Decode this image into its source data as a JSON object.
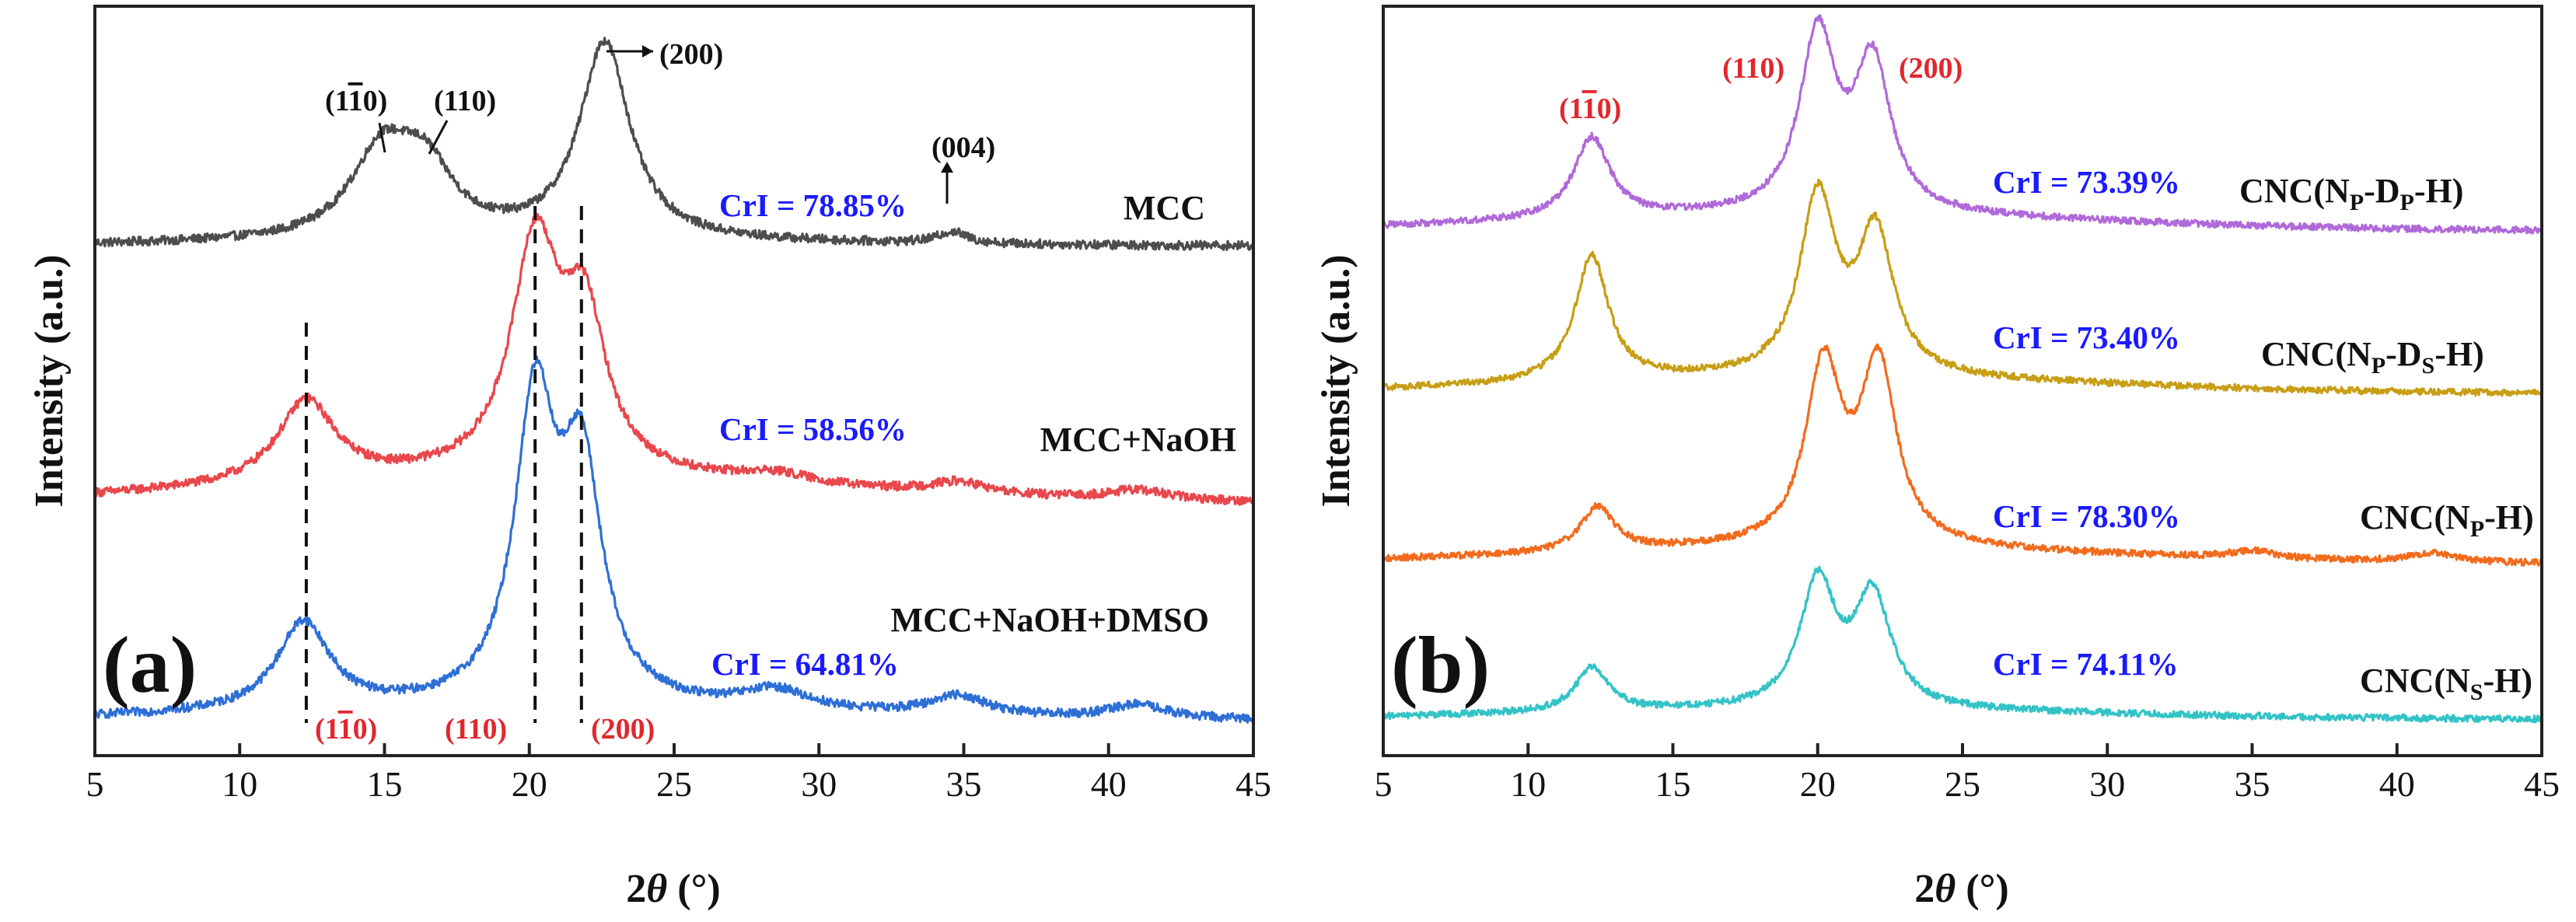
{
  "chart_data": [
    {
      "type": "line",
      "panel_label": "(a)",
      "xlabel_base": "2",
      "xlabel_theta": "θ",
      "xlabel_unit": " (°)",
      "ylabel": "Intensity (a.u.)",
      "xlim": [
        5,
        45
      ],
      "x_ticks": [
        "5",
        "10",
        "15",
        "20",
        "25",
        "30",
        "35",
        "40",
        "45"
      ],
      "y_ticks_labeled": false,
      "series": [
        {
          "name": "MCC",
          "color": "#4d4d4d",
          "offset": 2.4,
          "peaks": [
            {
              "x": 14.9,
              "h": 0.42,
              "w": 1.3
            },
            {
              "x": 16.4,
              "h": 0.32,
              "w": 1.2
            },
            {
              "x": 22.6,
              "h": 1.0,
              "w": 1.05
            },
            {
              "x": 34.6,
              "h": 0.06,
              "w": 0.6
            }
          ],
          "base": 0.02,
          "cri": "CrI = 78.85%"
        },
        {
          "name": "MCC+NaOH",
          "color": "#e8474c",
          "offset": 1.1,
          "peaks": [
            {
              "x": 12.3,
              "h": 0.42,
              "w": 1.2
            },
            {
              "x": 20.2,
              "h": 1.15,
              "w": 1.0
            },
            {
              "x": 21.9,
              "h": 0.75,
              "w": 0.9
            },
            {
              "x": 28.5,
              "h": 0.05,
              "w": 1.5
            },
            {
              "x": 34.8,
              "h": 0.06,
              "w": 1.2
            },
            {
              "x": 41.0,
              "h": 0.05,
              "w": 1.3
            }
          ],
          "base": 0.12,
          "cri": "CrI = 58.56%"
        },
        {
          "name": "MCC+NaOH+DMSO",
          "color": "#2e6fd6",
          "offset": 0.0,
          "peaks": [
            {
              "x": 12.2,
              "h": 0.45,
              "w": 1.1
            },
            {
              "x": 20.2,
              "h": 1.5,
              "w": 0.85
            },
            {
              "x": 21.8,
              "h": 1.15,
              "w": 0.85
            },
            {
              "x": 28.5,
              "h": 0.1,
              "w": 1.4
            },
            {
              "x": 34.8,
              "h": 0.1,
              "w": 1.2
            },
            {
              "x": 41.0,
              "h": 0.07,
              "w": 1.2
            }
          ],
          "base": 0.05,
          "cri": "CrI = 64.81%"
        }
      ],
      "annotations_top": [
        "(1",
        "1",
        "0)",
        "(110)",
        "(200)",
        "(004)"
      ],
      "annotations_bottom": [
        "(1",
        "1",
        "0)",
        "(110)",
        "(200)"
      ]
    },
    {
      "type": "line",
      "panel_label": "(b)",
      "xlabel_base": "2",
      "xlabel_theta": "θ",
      "xlabel_unit": " (°)",
      "ylabel": "Intensity (a.u.)",
      "xlim": [
        5,
        45
      ],
      "x_ticks": [
        "5",
        "10",
        "15",
        "20",
        "25",
        "30",
        "35",
        "40",
        "45"
      ],
      "y_ticks_labeled": false,
      "series": [
        {
          "name_main": "CNC(N",
          "name_parts": [
            "P",
            "-D",
            "P",
            "-H)"
          ],
          "color": "#b069d9",
          "offset": 3.3,
          "peaks": [
            {
              "x": 12.2,
              "h": 0.55,
              "w": 0.75
            },
            {
              "x": 20.0,
              "h": 1.2,
              "w": 0.75
            },
            {
              "x": 21.9,
              "h": 1.0,
              "w": 0.75
            }
          ],
          "base": 0.1,
          "cri": "CrI = 73.39%"
        },
        {
          "name_main": "CNC(N",
          "name_parts": [
            "P",
            "-D",
            "S",
            "-H)"
          ],
          "color": "#c79e14",
          "offset": 2.2,
          "peaks": [
            {
              "x": 12.2,
              "h": 0.85,
              "w": 0.7
            },
            {
              "x": 20.0,
              "h": 1.2,
              "w": 0.75
            },
            {
              "x": 22.0,
              "h": 0.95,
              "w": 0.75
            }
          ],
          "base": 0.1,
          "cri": "CrI = 73.40%"
        },
        {
          "name_main": "CNC(N",
          "name_parts": [
            "P",
            "-H)"
          ],
          "color": "#f26b1d",
          "offset": 1.05,
          "peaks": [
            {
              "x": 12.4,
              "h": 0.3,
              "w": 0.7
            },
            {
              "x": 20.2,
              "h": 1.2,
              "w": 0.75
            },
            {
              "x": 22.1,
              "h": 1.2,
              "w": 0.75
            },
            {
              "x": 35.0,
              "h": 0.05,
              "w": 1.0
            },
            {
              "x": 41.2,
              "h": 0.06,
              "w": 1.0
            }
          ],
          "base": 0.1,
          "cri": "CrI = 78.30%"
        },
        {
          "name_main": "CNC(N",
          "name_parts": [
            "S",
            "-H)"
          ],
          "color": "#33c3c7",
          "offset": 0.0,
          "peaks": [
            {
              "x": 12.2,
              "h": 0.3,
              "w": 0.7
            },
            {
              "x": 20.0,
              "h": 0.85,
              "w": 0.75
            },
            {
              "x": 21.9,
              "h": 0.75,
              "w": 0.75
            }
          ],
          "base": 0.06,
          "cri": "CrI = 74.11%"
        }
      ],
      "annotations_top": [
        "(1",
        "1",
        "0)",
        "(110)",
        "(200)"
      ]
    }
  ],
  "colors": {
    "annotation_red": "#e0282e",
    "cri_blue": "#1a1aff",
    "axis": "#222222"
  }
}
